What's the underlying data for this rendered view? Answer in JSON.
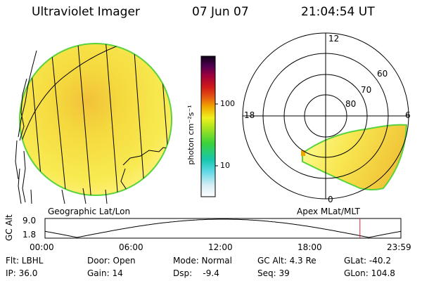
{
  "header": {
    "title": "Ultraviolet Imager",
    "date": "07 Jun 07",
    "time": "21:04:54 UT"
  },
  "colorbar": {
    "unit_label": "photon cm⁻²s⁻¹",
    "tick_100": "100",
    "tick_10": "10"
  },
  "geo_panel": {
    "caption": "Geographic Lat/Lon"
  },
  "polar_panel": {
    "caption": "Apex MLat/MLT",
    "mlt_12": "12",
    "mlt_18": "18",
    "mlt_6": "6",
    "mlt_0": "0",
    "lat_60": "60",
    "lat_70": "70",
    "lat_80": "80"
  },
  "orbit": {
    "ylabel": "GC Alt",
    "ytick_top": "9.0",
    "ytick_bottom": "1.8",
    "xticks": [
      "00:00",
      "06:00",
      "12:00",
      "18:00",
      "23:59"
    ],
    "current_time_fraction": 0.885
  },
  "info": {
    "flt": "Flt: LBHL",
    "ip": "IP: 36.0",
    "door": "Door: Open",
    "gain": "Gain: 14",
    "mode": "Mode: Normal",
    "dsp": "Dsp:    -9.4",
    "gc_alt": "GC Alt: 4.3 Re",
    "seq": "Seq: 39",
    "glat": "GLat: -40.2",
    "glon": "GLon: 104.8"
  },
  "colors": {
    "emission_high": "#f0b430",
    "emission_mid": "#f6e63c",
    "emission_low": "#ffff96",
    "emission_edge": "#5ad23c"
  }
}
